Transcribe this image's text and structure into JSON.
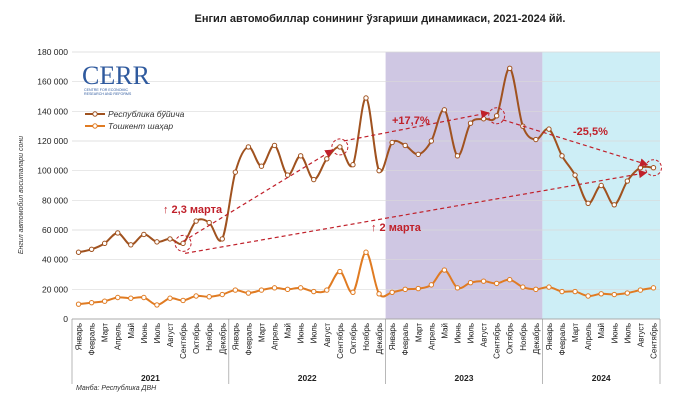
{
  "chart_data": {
    "type": "line",
    "title": "Енгил автомобиллар сонининг ўзгариши динамикаси, 2021-2024 йй.",
    "ylabel": "Енгил автомобил воситалари сони",
    "source": "Манба: Республика ДВН",
    "ylim": [
      0,
      180000
    ],
    "yticks": [
      "0",
      "20 000",
      "40 000",
      "60 000",
      "80 000",
      "100 000",
      "120 000",
      "140 000",
      "160 000",
      "180 000"
    ],
    "categories": [
      "Январь",
      "Февраль",
      "Март",
      "Апрель",
      "Май",
      "Июнь",
      "Июль",
      "Август",
      "Сентябрь",
      "Октябрь",
      "Ноябрь",
      "Декабрь",
      "Январь",
      "Февраль",
      "Март",
      "Апрель",
      "Май",
      "Июнь",
      "Июль",
      "Август",
      "Сентябрь",
      "Октябрь",
      "Ноябрь",
      "Декабрь",
      "Январь",
      "Февраль",
      "Март",
      "Апрель",
      "Май",
      "Июнь",
      "Июль",
      "Август",
      "Сентябрь",
      "Октябрь",
      "Ноябрь",
      "Декабрь",
      "Январь",
      "Февраль",
      "Март",
      "Апрель",
      "Май",
      "Июнь",
      "Июль",
      "Август",
      "Сентябрь"
    ],
    "years": [
      {
        "label": "2021",
        "start": 0,
        "end": 11
      },
      {
        "label": "2022",
        "start": 12,
        "end": 23
      },
      {
        "label": "2023",
        "start": 24,
        "end": 35
      },
      {
        "label": "2024",
        "start": 36,
        "end": 44
      }
    ],
    "series": [
      {
        "name": "Республика бўйича",
        "color": "#a0521f",
        "values": [
          45000,
          47000,
          51000,
          58000,
          50000,
          57000,
          52000,
          54000,
          51000,
          66000,
          65000,
          54000,
          99000,
          116000,
          103000,
          117000,
          97000,
          110000,
          94000,
          108000,
          116000,
          104000,
          149000,
          100000,
          119000,
          117000,
          111000,
          120000,
          141000,
          110000,
          132000,
          135000,
          137000,
          169000,
          130000,
          121000,
          128000,
          110000,
          97000,
          78000,
          90000,
          77000,
          93000,
          102000,
          102000
        ]
      },
      {
        "name": "Тошкент шаҳар",
        "color": "#e07b22",
        "values": [
          10000,
          11000,
          12000,
          14500,
          14000,
          14500,
          9500,
          14000,
          12500,
          15500,
          15000,
          16500,
          19500,
          17500,
          19500,
          21000,
          20000,
          21000,
          18500,
          19500,
          32000,
          18000,
          45000,
          17000,
          18000,
          20000,
          20500,
          23000,
          33000,
          21000,
          24500,
          25500,
          24000,
          26500,
          21500,
          20000,
          21500,
          18500,
          18500,
          15500,
          17000,
          16500,
          17500,
          19500,
          21000
        ]
      }
    ],
    "highlight_colors": {
      "y2023": "#cfc7e3",
      "y2024": "#cdeef6"
    },
    "annotations": {
      "growth_2022": "↑ 2,3 марта",
      "growth_long": "↑ 2 марта",
      "up_2023": "+17,7%",
      "down_2024": "-25,5%"
    },
    "logo": {
      "main": "CERR",
      "sub": [
        "CENTRE FOR ECONOMIC",
        "RESEARCH AND REFORMS"
      ]
    }
  }
}
